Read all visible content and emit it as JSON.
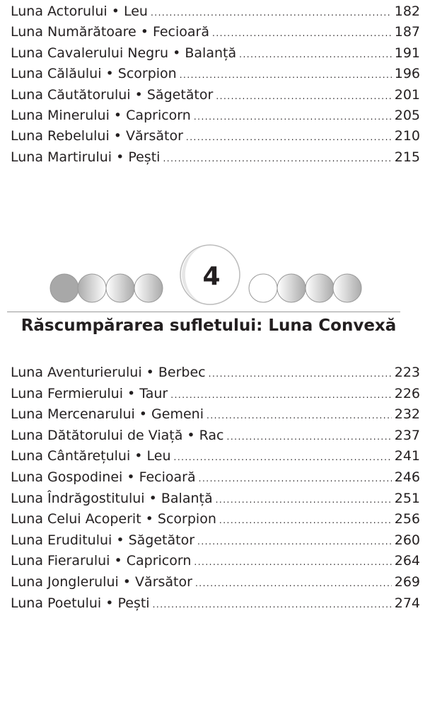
{
  "top_entries": [
    {
      "label": "Luna Actorului • Leu",
      "page": "182"
    },
    {
      "label": "Luna Numărătoare • Fecioară",
      "page": "187"
    },
    {
      "label": "Luna Cavalerului Negru • Balanță",
      "page": "191"
    },
    {
      "label": "Luna Călăului • Scorpion",
      "page": "196"
    },
    {
      "label": "Luna Căutătorului • Săgetător",
      "page": "201"
    },
    {
      "label": "Luna Minerului • Capricorn",
      "page": "205"
    },
    {
      "label": "Luna Rebelului • Vărsător",
      "page": "210"
    },
    {
      "label": "Luna Martirului • Pești",
      "page": "215"
    }
  ],
  "section": {
    "number": "4",
    "title": "Răscumpărarea sufletului: Luna Convexă"
  },
  "bottom_entries": [
    {
      "label": "Luna Aventurierului • Berbec",
      "page": "223"
    },
    {
      "label": "Luna Fermierului • Taur",
      "page": "226"
    },
    {
      "label": "Luna Mercenarului • Gemeni",
      "page": "232"
    },
    {
      "label": "Luna Dătătorului de Viață • Rac",
      "page": "237"
    },
    {
      "label": "Luna Cântărețului • Leu",
      "page": "241"
    },
    {
      "label": "Luna Gospodinei • Fecioară",
      "page": "246"
    },
    {
      "label": "Luna Îndrăgostitului • Balanță",
      "page": "251"
    },
    {
      "label": "Luna Celui Acoperit • Scorpion",
      "page": "256"
    },
    {
      "label": "Luna Eruditului • Săgetător",
      "page": "260"
    },
    {
      "label": "Luna Fierarului • Capricorn",
      "page": "264"
    },
    {
      "label": "Luna Jonglerului • Vărsător",
      "page": "269"
    },
    {
      "label": "Luna Poetului • Pești",
      "page": "274"
    }
  ]
}
